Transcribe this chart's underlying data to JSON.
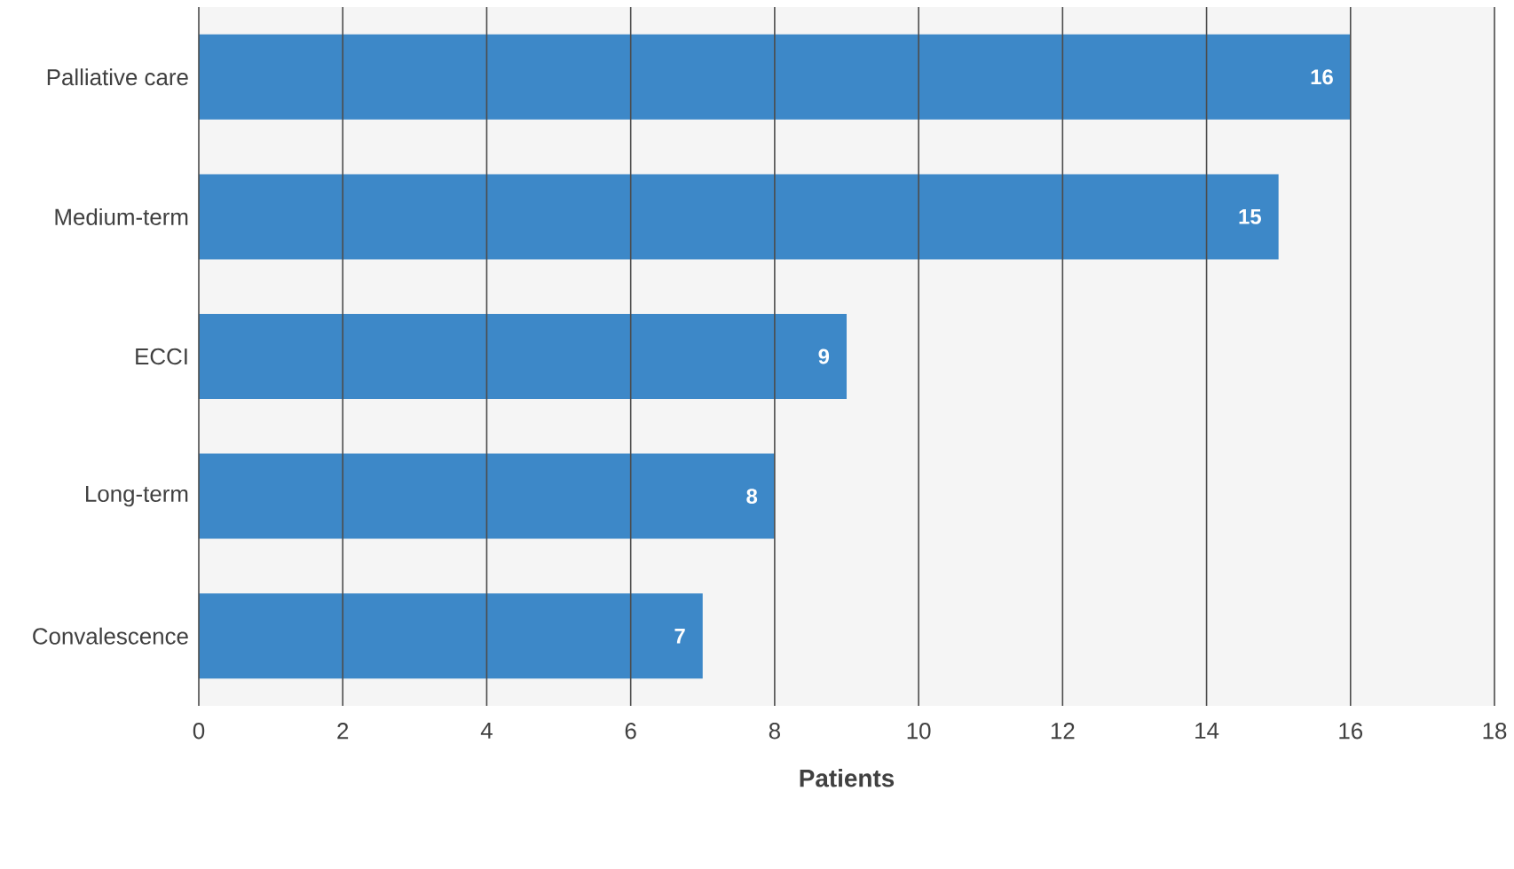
{
  "chart_data": {
    "type": "bar",
    "orientation": "horizontal",
    "xlabel": "Patients",
    "categories": [
      "Palliative care",
      "Medium-term",
      "ECCI",
      "Long-term",
      "Convalescence"
    ],
    "values": [
      16,
      15,
      9,
      8,
      7
    ],
    "color": "#3d88c8",
    "xlim": [
      0,
      18
    ],
    "xticks": [
      0,
      2,
      4,
      6,
      8,
      10,
      12,
      14,
      16,
      18
    ],
    "grid": "x",
    "data_labels": true
  }
}
